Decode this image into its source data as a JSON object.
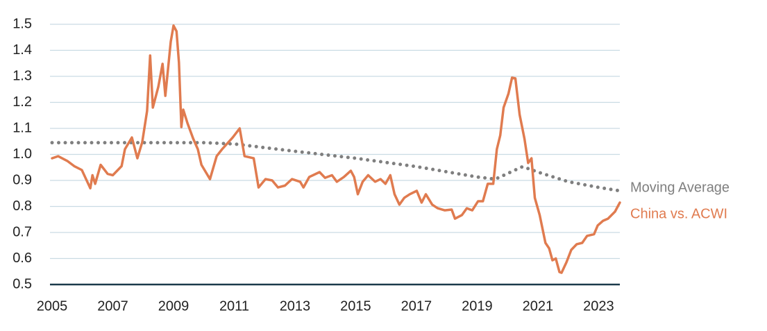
{
  "chart_data": {
    "type": "line",
    "xlim": [
      2005,
      2023.7
    ],
    "xticks": [
      2005,
      2007,
      2009,
      2011,
      2013,
      2015,
      2017,
      2019,
      2021,
      2023
    ],
    "ylim": [
      0.5,
      1.5
    ],
    "yticks": [
      0.5,
      0.6,
      0.7,
      0.8,
      0.9,
      {
        "value": 1,
        "label": "1.0"
      },
      1.1,
      1.2,
      1.3,
      1.4,
      1.5
    ],
    "grid": true,
    "legend": "right",
    "series": [
      {
        "name": "Moving Average",
        "color": "#7f7f7f",
        "style": "dotted",
        "x": [
          2005,
          2010,
          2011,
          2013,
          2015,
          2017,
          2019,
          2019.6,
          2020.5,
          2021,
          2022,
          2023,
          2023.7
        ],
        "values": [
          1.045,
          1.045,
          1.04,
          1.012,
          0.985,
          0.953,
          0.913,
          0.905,
          0.953,
          0.932,
          0.895,
          0.873,
          0.86
        ]
      },
      {
        "name": "China vs. ACWI",
        "color": "#e07b4f",
        "style": "solid",
        "x": [
          2005,
          2005.2,
          2005.5,
          2005.73,
          2005.98,
          2006.26,
          2006.33,
          2006.42,
          2006.6,
          2006.83,
          2007,
          2007.29,
          2007.4,
          2007.63,
          2007.81,
          2007.97,
          2008.13,
          2008.23,
          2008.32,
          2008.5,
          2008.64,
          2008.73,
          2008.91,
          2009,
          2009.1,
          2009.18,
          2009.26,
          2009.32,
          2009.46,
          2009.65,
          2009.8,
          2009.92,
          2010.2,
          2010.42,
          2010.6,
          2010.95,
          2011.18,
          2011.34,
          2011.64,
          2011.8,
          2012.03,
          2012.25,
          2012.44,
          2012.67,
          2012.9,
          2013.17,
          2013.28,
          2013.47,
          2013.81,
          2013.99,
          2014.22,
          2014.38,
          2014.61,
          2014.84,
          2014.95,
          2015.07,
          2015.23,
          2015.41,
          2015.64,
          2015.82,
          2015.98,
          2016.14,
          2016.28,
          2016.44,
          2016.6,
          2016.78,
          2017.01,
          2017.17,
          2017.31,
          2017.52,
          2017.7,
          2017.93,
          2018.16,
          2018.27,
          2018.5,
          2018.66,
          2018.84,
          2019.03,
          2019.19,
          2019.35,
          2019.53,
          2019.65,
          2019.76,
          2019.87,
          2020.03,
          2020.15,
          2020.26,
          2020.4,
          2020.56,
          2020.68,
          2020.79,
          2020.9,
          2021.06,
          2021.25,
          2021.37,
          2021.48,
          2021.59,
          2021.71,
          2021.78,
          2021.94,
          2022.1,
          2022.28,
          2022.46,
          2022.62,
          2022.85,
          2022.97,
          2023.15,
          2023.31,
          2023.54,
          2023.7
        ],
        "values": [
          0.985,
          0.993,
          0.975,
          0.955,
          0.94,
          0.87,
          0.92,
          0.887,
          0.96,
          0.925,
          0.92,
          0.955,
          1.02,
          1.065,
          0.985,
          1.047,
          1.167,
          1.38,
          1.18,
          1.26,
          1.348,
          1.225,
          1.433,
          1.495,
          1.473,
          1.353,
          1.105,
          1.172,
          1.12,
          1.06,
          1.02,
          0.96,
          0.905,
          0.993,
          1.02,
          1.065,
          1.1,
          0.993,
          0.985,
          0.873,
          0.905,
          0.9,
          0.873,
          0.88,
          0.905,
          0.895,
          0.873,
          0.913,
          0.932,
          0.91,
          0.92,
          0.895,
          0.913,
          0.937,
          0.913,
          0.847,
          0.895,
          0.92,
          0.895,
          0.905,
          0.887,
          0.92,
          0.847,
          0.807,
          0.833,
          0.847,
          0.86,
          0.815,
          0.847,
          0.807,
          0.793,
          0.785,
          0.788,
          0.753,
          0.767,
          0.793,
          0.785,
          0.82,
          0.82,
          0.887,
          0.887,
          1.02,
          1.073,
          1.18,
          1.233,
          1.295,
          1.292,
          1.153,
          1.06,
          0.967,
          0.985,
          0.833,
          0.767,
          0.66,
          0.639,
          0.593,
          0.6,
          0.548,
          0.545,
          0.585,
          0.633,
          0.655,
          0.66,
          0.687,
          0.693,
          0.727,
          0.745,
          0.753,
          0.78,
          0.815
        ]
      }
    ]
  }
}
